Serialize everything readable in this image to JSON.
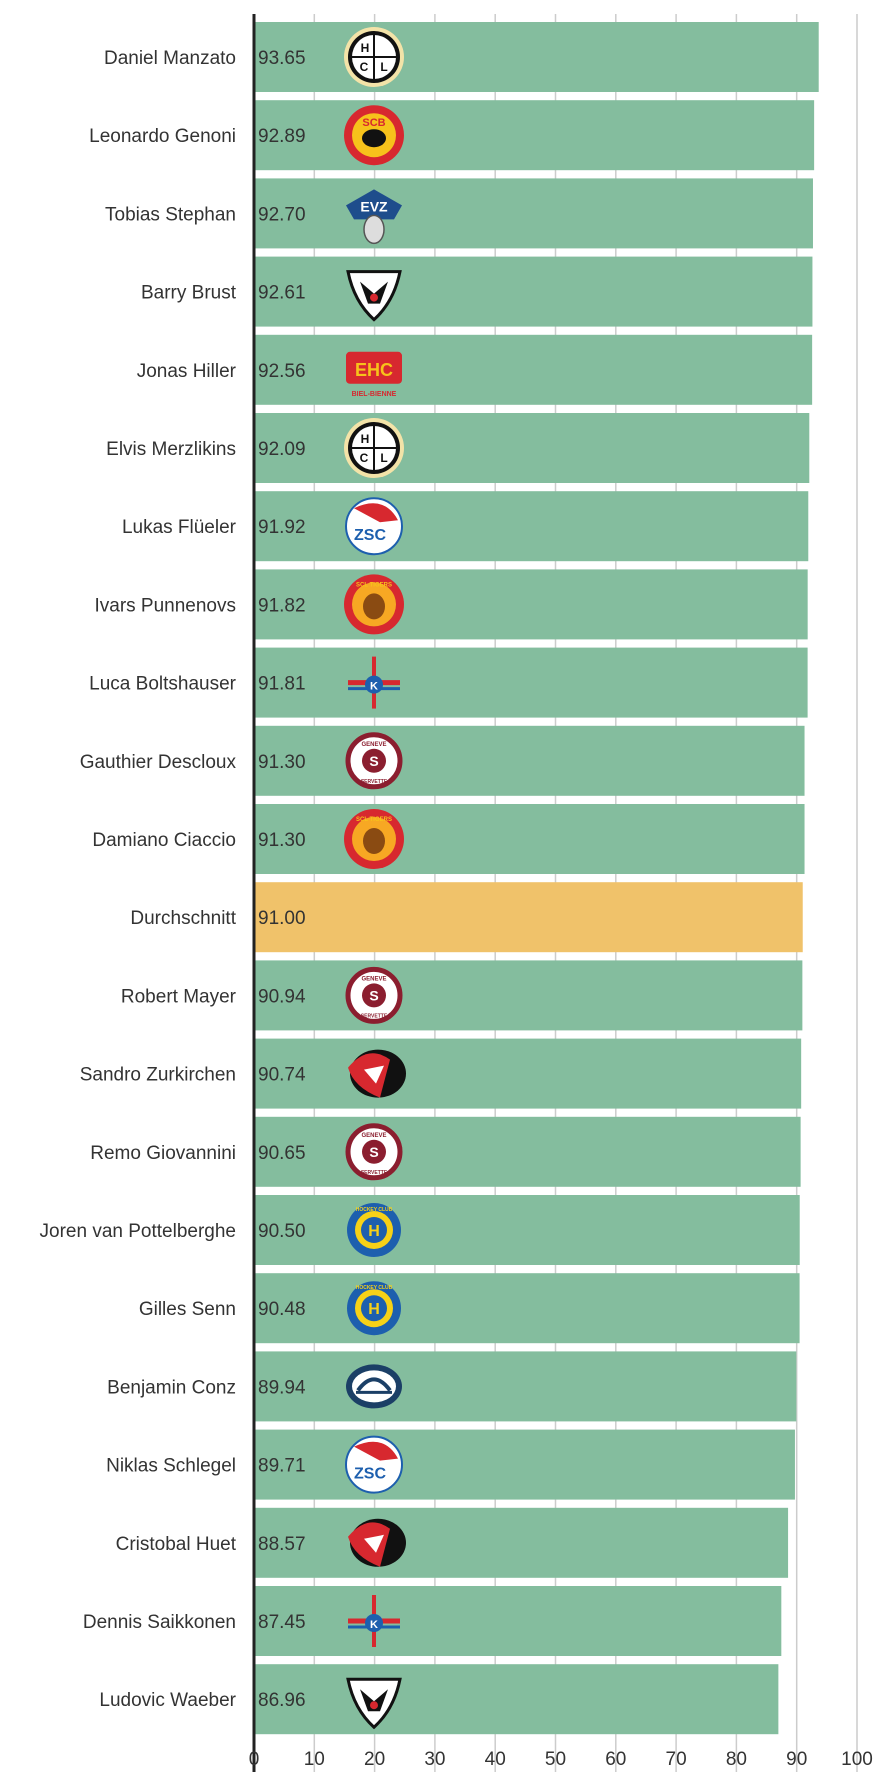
{
  "chart_data": {
    "type": "bar",
    "orientation": "horizontal",
    "xlim": [
      0,
      100
    ],
    "xticks": [
      "0",
      "10",
      "20",
      "30",
      "40",
      "50",
      "60",
      "70",
      "80",
      "90",
      "100"
    ],
    "grid": true,
    "colors": {
      "bar": "#84bd9e",
      "highlight": "#f0c26a",
      "axis": "#222222",
      "grid": "#cccccc"
    },
    "rows": [
      {
        "name": "Daniel Manzato",
        "value": 93.65,
        "label": "93.65",
        "logo": "lugano-logo",
        "highlight": false
      },
      {
        "name": "Leonardo Genoni",
        "value": 92.89,
        "label": "92.89",
        "logo": "bern-logo",
        "highlight": false
      },
      {
        "name": "Tobias Stephan",
        "value": 92.7,
        "label": "92.70",
        "logo": "zug-logo",
        "highlight": false
      },
      {
        "name": "Barry Brust",
        "value": 92.61,
        "label": "92.61",
        "logo": "fribourg-logo",
        "highlight": false
      },
      {
        "name": "Jonas Hiller",
        "value": 92.56,
        "label": "92.56",
        "logo": "biel-logo",
        "highlight": false
      },
      {
        "name": "Elvis Merzlikins",
        "value": 92.09,
        "label": "92.09",
        "logo": "lugano-logo",
        "highlight": false
      },
      {
        "name": "Lukas Flüeler",
        "value": 91.92,
        "label": "91.92",
        "logo": "zsc-logo",
        "highlight": false
      },
      {
        "name": "Ivars Punnenovs",
        "value": 91.82,
        "label": "91.82",
        "logo": "langnau-logo",
        "highlight": false
      },
      {
        "name": "Luca Boltshauser",
        "value": 91.81,
        "label": "91.81",
        "logo": "kloten-logo",
        "highlight": false
      },
      {
        "name": "Gauthier Descloux",
        "value": 91.3,
        "label": "91.30",
        "logo": "servette-logo",
        "highlight": false
      },
      {
        "name": "Damiano Ciaccio",
        "value": 91.3,
        "label": "91.30",
        "logo": "langnau-logo",
        "highlight": false
      },
      {
        "name": "Durchschnitt",
        "value": 91.0,
        "label": "91.00",
        "logo": "",
        "highlight": true
      },
      {
        "name": "Robert Mayer",
        "value": 90.94,
        "label": "90.94",
        "logo": "servette-logo",
        "highlight": false
      },
      {
        "name": "Sandro Zurkirchen",
        "value": 90.74,
        "label": "90.74",
        "logo": "lausanne-logo",
        "highlight": false
      },
      {
        "name": "Remo Giovannini",
        "value": 90.65,
        "label": "90.65",
        "logo": "servette-logo",
        "highlight": false
      },
      {
        "name": "Joren van Pottelberghe",
        "value": 90.5,
        "label": "90.50",
        "logo": "davos-logo",
        "highlight": false
      },
      {
        "name": "Gilles Senn",
        "value": 90.48,
        "label": "90.48",
        "logo": "davos-logo",
        "highlight": false
      },
      {
        "name": "Benjamin Conz",
        "value": 89.94,
        "label": "89.94",
        "logo": "ambri-logo",
        "highlight": false
      },
      {
        "name": "Niklas Schlegel",
        "value": 89.71,
        "label": "89.71",
        "logo": "zsc-logo",
        "highlight": false
      },
      {
        "name": "Cristobal Huet",
        "value": 88.57,
        "label": "88.57",
        "logo": "lausanne-logo",
        "highlight": false
      },
      {
        "name": "Dennis Saikkonen",
        "value": 87.45,
        "label": "87.45",
        "logo": "kloten-logo",
        "highlight": false
      },
      {
        "name": "Ludovic Waeber",
        "value": 86.96,
        "label": "86.96",
        "logo": "fribourg-logo",
        "highlight": false
      }
    ]
  }
}
